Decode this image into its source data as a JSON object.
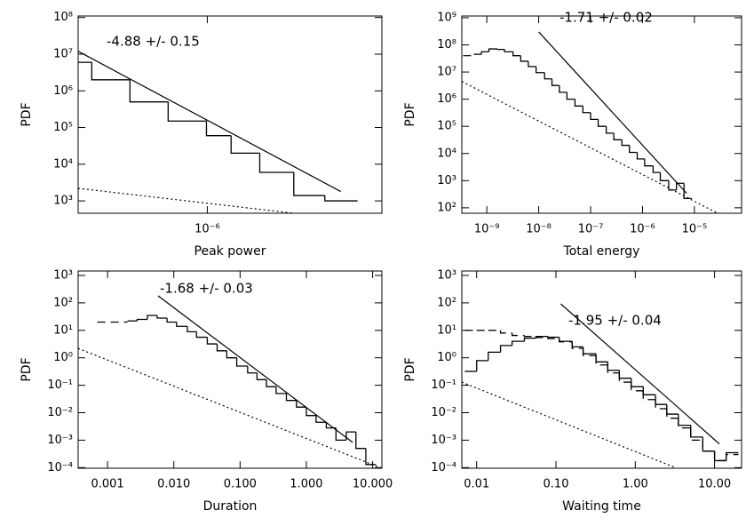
{
  "chart_data": [
    {
      "type": "histogram",
      "xscale": "log",
      "yscale": "log",
      "color": "#000000",
      "x_label": "Peak power",
      "y_label": "PDF",
      "annotation": "-4.88 +/- 0.15",
      "xlim": [
        3.4e-07,
        4.3e-06
      ],
      "ylim": [
        460,
        110000000.0
      ],
      "xticks": [
        {
          "value": 1e-06,
          "label": "10⁻⁶"
        }
      ],
      "yticks": [
        {
          "value": 1000,
          "label": "10³"
        },
        {
          "value": 10000,
          "label": "10⁴"
        },
        {
          "value": 100000,
          "label": "10⁵"
        },
        {
          "value": 1000000,
          "label": "10⁶"
        },
        {
          "value": 10000000,
          "label": "10⁷"
        },
        {
          "value": 100000000,
          "label": "10⁸"
        }
      ],
      "bins": [
        3.4e-07,
        3.81e-07,
        5.24e-07,
        7.21e-07,
        9.93e-07,
        1.22e-06,
        1.55e-06,
        2.06e-06,
        2.67e-06,
        3.51e-06
      ],
      "series": [
        {
          "style": "solid",
          "values": [
            6000000,
            2000000,
            500000,
            150000,
            60000,
            20000,
            6000,
            1400,
            1000
          ]
        }
      ],
      "lines": [
        {
          "style": "solid",
          "x": [
            3.4e-07,
            3.05e-06
          ],
          "values": [
            12000000,
            1800
          ]
        },
        {
          "style": "dotted",
          "x": [
            3.4e-07,
            2.06e-06
          ],
          "values": [
            2200,
            460
          ]
        }
      ]
    },
    {
      "type": "histogram",
      "xscale": "log",
      "yscale": "log",
      "color": "#000000",
      "x_label": "Total energy",
      "y_label": "PDF",
      "annotation": "-1.71 +/- 0.02",
      "xlim": [
        3.3e-10,
        8.1e-05
      ],
      "ylim": [
        63,
        1160000000.0
      ],
      "xticks": [
        {
          "value": 1e-09,
          "label": "10⁻⁹"
        },
        {
          "value": 1e-08,
          "label": "10⁻⁸"
        },
        {
          "value": 1e-07,
          "label": "10⁻⁷"
        },
        {
          "value": 1e-06,
          "label": "10⁻⁶"
        },
        {
          "value": 1e-05,
          "label": "10⁻⁵"
        }
      ],
      "yticks": [
        {
          "value": 100,
          "label": "10²"
        },
        {
          "value": 1000,
          "label": "10³"
        },
        {
          "value": 10000,
          "label": "10⁴"
        },
        {
          "value": 100000,
          "label": "10⁵"
        },
        {
          "value": 1000000,
          "label": "10⁶"
        },
        {
          "value": 10000000,
          "label": "10⁷"
        },
        {
          "value": 100000000,
          "label": "10⁸"
        },
        {
          "value": 1000000000,
          "label": "10⁹"
        }
      ],
      "bins": [
        5.6e-10,
        7.9e-10,
        1.1e-09,
        1.6e-09,
        2.2e-09,
        3.2e-09,
        4.5e-09,
        6.3e-09,
        8.9e-09,
        1.3e-08,
        1.8e-08,
        2.5e-08,
        3.5e-08,
        5e-08,
        7.1e-08,
        1e-07,
        1.4e-07,
        2e-07,
        2.8e-07,
        4e-07,
        5.6e-07,
        7.9e-07,
        1.1e-06,
        1.6e-06,
        2.2e-06,
        3.2e-06,
        4.5e-06,
        6.3e-06,
        8.9e-06
      ],
      "series": [
        {
          "style": "solid",
          "values": [
            45000000,
            56000000,
            71000000,
            68000000,
            56000000,
            40000000,
            25000000,
            16000000,
            9500000,
            5600000,
            3200000,
            1800000,
            1000000,
            560000,
            320000,
            180000,
            100000,
            56000,
            32000,
            20000,
            11000,
            6300,
            3500,
            2000,
            1000,
            450,
            800,
            220
          ]
        }
      ],
      "lines": [
        {
          "style": "dashed",
          "x": [
            3.5e-10,
            5.6e-10
          ],
          "values": [
            40000000,
            40000000
          ]
        },
        {
          "style": "solid",
          "x": [
            1e-08,
            7.1e-06
          ],
          "values": [
            300000000,
            340
          ]
        },
        {
          "style": "dotted",
          "x": [
            3.3e-10,
            2.8e-05
          ],
          "values": [
            4500000,
            63
          ]
        }
      ]
    },
    {
      "type": "histogram",
      "xscale": "log",
      "yscale": "log",
      "color": "#000000",
      "x_label": "Duration",
      "y_label": "PDF",
      "annotation": "-1.68 +/- 0.03",
      "xlim": [
        0.00036,
        13.8
      ],
      "ylim": [
        9.5e-05,
        1450
      ],
      "xticks": [
        {
          "value": 0.001,
          "label": "0.001"
        },
        {
          "value": 0.01,
          "label": "0.010"
        },
        {
          "value": 0.1,
          "label": "0.100"
        },
        {
          "value": 1,
          "label": "1.000"
        },
        {
          "value": 10,
          "label": "10.000"
        }
      ],
      "yticks": [
        {
          "value": 0.0001,
          "label": "10⁻⁴"
        },
        {
          "value": 0.001,
          "label": "10⁻³"
        },
        {
          "value": 0.01,
          "label": "10⁻²"
        },
        {
          "value": 0.1,
          "label": "10⁻¹"
        },
        {
          "value": 1,
          "label": "10⁰"
        },
        {
          "value": 10,
          "label": "10¹"
        },
        {
          "value": 100,
          "label": "10²"
        },
        {
          "value": 1000,
          "label": "10³"
        }
      ],
      "bins": [
        0.002,
        0.0028,
        0.004,
        0.0056,
        0.0079,
        0.011,
        0.016,
        0.022,
        0.032,
        0.045,
        0.063,
        0.089,
        0.13,
        0.18,
        0.25,
        0.35,
        0.5,
        0.71,
        1.0,
        1.4,
        2.0,
        2.8,
        4.0,
        5.6,
        7.9,
        11.2
      ],
      "series": [
        {
          "style": "solid",
          "values": [
            22,
            25,
            35,
            28,
            20,
            14,
            8.9,
            5.6,
            3.2,
            1.8,
            1.0,
            0.5,
            0.28,
            0.16,
            0.089,
            0.05,
            0.028,
            0.016,
            0.0079,
            0.0045,
            0.0028,
            0.001,
            0.002,
            0.0005,
            0.00013
          ]
        }
      ],
      "lines": [
        {
          "style": "dashed",
          "x": [
            0.0007,
            0.002
          ],
          "values": [
            20,
            20
          ]
        },
        {
          "style": "solid",
          "x": [
            0.0058,
            5.0
          ],
          "values": [
            180,
            0.00083
          ]
        },
        {
          "style": "dotted",
          "x": [
            0.00036,
            13.8
          ],
          "values": [
            2.2,
            9.5e-05
          ]
        }
      ]
    },
    {
      "type": "histogram",
      "xscale": "log",
      "yscale": "log",
      "color": "#000000",
      "x_label": "Waiting time",
      "y_label": "PDF",
      "annotation": "-1.95 +/- 0.04",
      "xlim": [
        0.0065,
        21.9
      ],
      "ylim": [
        9.5e-05,
        1450
      ],
      "xticks": [
        {
          "value": 0.01,
          "label": "0.01"
        },
        {
          "value": 0.1,
          "label": "0.10"
        },
        {
          "value": 1,
          "label": "1.00"
        },
        {
          "value": 10,
          "label": "10.00"
        }
      ],
      "yticks": [
        {
          "value": 0.0001,
          "label": "10⁻⁴"
        },
        {
          "value": 0.001,
          "label": "10⁻³"
        },
        {
          "value": 0.01,
          "label": "10⁻²"
        },
        {
          "value": 0.1,
          "label": "10⁻¹"
        },
        {
          "value": 1,
          "label": "10⁰"
        },
        {
          "value": 10,
          "label": "10¹"
        },
        {
          "value": 100,
          "label": "10²"
        },
        {
          "value": 1000,
          "label": "10³"
        }
      ],
      "bins": [
        0.0071,
        0.01,
        0.014,
        0.02,
        0.028,
        0.04,
        0.056,
        0.079,
        0.11,
        0.16,
        0.22,
        0.32,
        0.45,
        0.63,
        0.89,
        1.26,
        1.8,
        2.5,
        3.5,
        5.0,
        7.1,
        10,
        14,
        20
      ],
      "series": [
        {
          "style": "solid",
          "values": [
            0.32,
            0.79,
            1.6,
            2.8,
            4.0,
            5.2,
            6.0,
            5.6,
            4.0,
            2.5,
            1.4,
            0.71,
            0.35,
            0.18,
            0.089,
            0.045,
            0.02,
            0.0089,
            0.0035,
            0.0013,
            0.0004,
            0.00018,
            0.00035
          ]
        },
        {
          "style": "dashed",
          "values": [
            10,
            10,
            10,
            8,
            6.5,
            6,
            5.5,
            5,
            3.8,
            2.2,
            1.2,
            0.55,
            0.28,
            0.13,
            0.063,
            0.03,
            0.014,
            0.0063,
            0.0028,
            0.001,
            0.0004,
            0.00018,
            0.0003
          ]
        }
      ],
      "lines": [
        {
          "style": "solid",
          "x": [
            0.115,
            11.5
          ],
          "values": [
            92,
            0.00073
          ]
        },
        {
          "style": "dotted",
          "x": [
            0.0065,
            3.2
          ],
          "values": [
            0.13,
            0.0001
          ]
        }
      ]
    }
  ]
}
